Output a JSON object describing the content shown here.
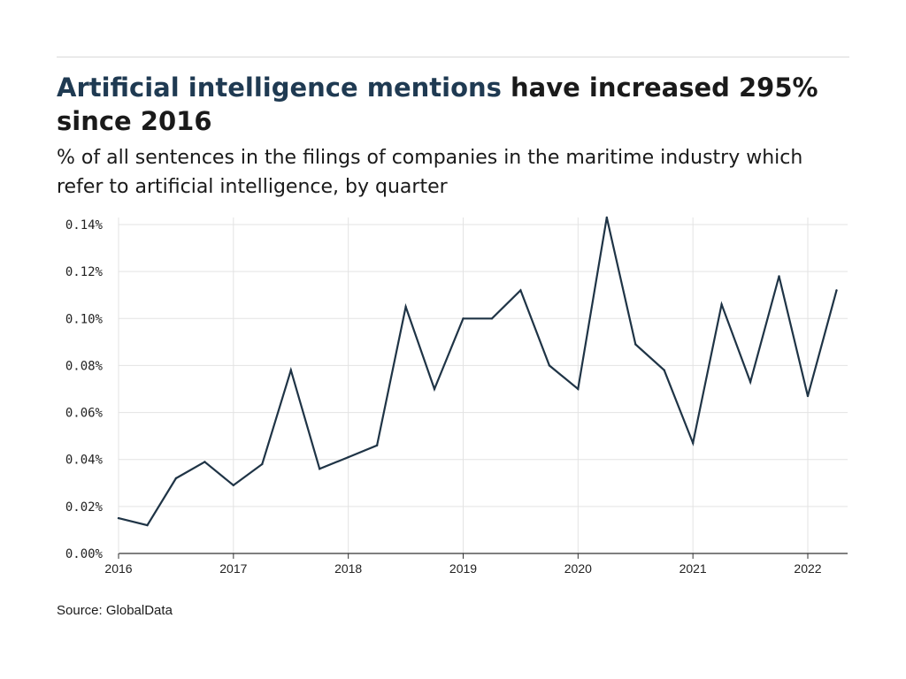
{
  "header": {
    "title_highlight": "Artificial intelligence mentions",
    "title_rest": " have increased 295% since 2016",
    "subtitle": "% of all sentences in the filings of companies in the maritime industry which refer to artificial intelligence, by quarter"
  },
  "footer": {
    "source": "Source: GlobalData"
  },
  "colors": {
    "line": "#1f3446",
    "title_highlight": "#1f3a52",
    "grid": "#e3e3e3",
    "axis": "#333333"
  },
  "chart_data": {
    "type": "line",
    "title": "Artificial intelligence mentions have increased 295% since 2016",
    "subtitle": "% of all sentences in the filings of companies in the maritime industry which refer to artificial intelligence, by quarter",
    "xlabel": "",
    "ylabel": "",
    "ylim": [
      0,
      0.14
    ],
    "y_ticks": [
      0,
      0.02,
      0.04,
      0.06,
      0.08,
      0.1,
      0.12,
      0.14
    ],
    "y_tick_labels": [
      "0.00%",
      "0.02%",
      "0.04%",
      "0.06%",
      "0.08%",
      "0.10%",
      "0.12%",
      "0.14%"
    ],
    "x_ticks": [
      "2016",
      "2017",
      "2018",
      "2019",
      "2020",
      "2021",
      "2022"
    ],
    "grid": true,
    "legend": "none",
    "series": [
      {
        "x": [
          "2016 Q1",
          "2016 Q2",
          "2016 Q3",
          "2016 Q4",
          "2017 Q1",
          "2017 Q2",
          "2017 Q3",
          "2017 Q4",
          "2018 Q1",
          "2018 Q2",
          "2018 Q3",
          "2018 Q4",
          "2019 Q1",
          "2019 Q2",
          "2019 Q3",
          "2019 Q4",
          "2020 Q1",
          "2020 Q2",
          "2020 Q3",
          "2020 Q4",
          "2021 Q1",
          "2021 Q2",
          "2021 Q3",
          "2021 Q4",
          "2022 Q1",
          "2022 Q2"
        ],
        "values": [
          0.015,
          0.012,
          0.032,
          0.039,
          0.029,
          0.038,
          0.078,
          0.036,
          0.041,
          0.046,
          0.105,
          0.07,
          0.1,
          0.1,
          0.112,
          0.08,
          0.07,
          0.143,
          0.089,
          0.078,
          0.047,
          0.106,
          0.073,
          0.118,
          0.067,
          0.112
        ]
      }
    ],
    "source": "Source: GlobalData"
  }
}
